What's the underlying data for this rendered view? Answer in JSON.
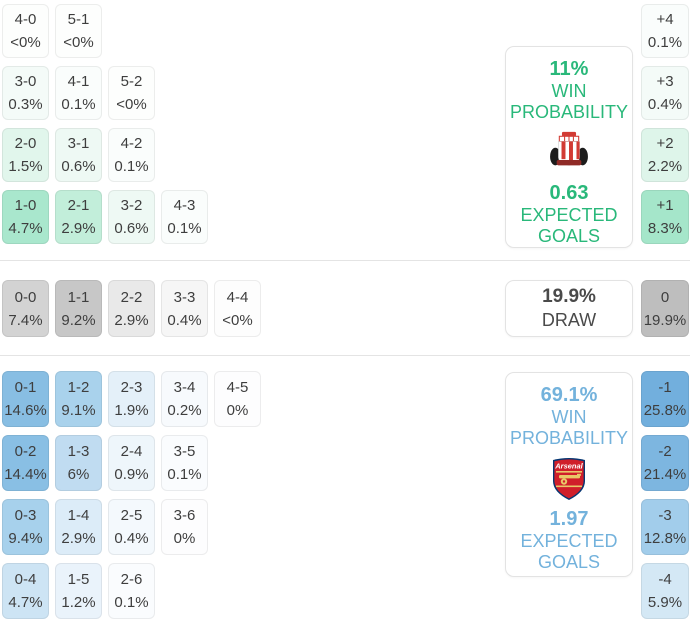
{
  "chart_data": {
    "type": "heatmap",
    "description_labels": {
      "home_crest_icon": "sunderland-crest",
      "away_crest_icon": "arsenal-crest"
    },
    "home_win_score_rows": [
      [
        {
          "score": "4-0",
          "prob": "<0%",
          "bg": "#fdfefd"
        },
        {
          "score": "5-1",
          "prob": "<0%",
          "bg": "#fdfefd"
        }
      ],
      [
        {
          "score": "3-0",
          "prob": "0.3%",
          "bg": "#f4fbf8"
        },
        {
          "score": "4-1",
          "prob": "0.1%",
          "bg": "#fafdfc"
        },
        {
          "score": "5-2",
          "prob": "<0%",
          "bg": "#fdfefd"
        }
      ],
      [
        {
          "score": "2-0",
          "prob": "1.5%",
          "bg": "#e1f6ec"
        },
        {
          "score": "3-1",
          "prob": "0.6%",
          "bg": "#eef9f4"
        },
        {
          "score": "4-2",
          "prob": "0.1%",
          "bg": "#fafdfc"
        }
      ],
      [
        {
          "score": "1-0",
          "prob": "4.7%",
          "bg": "#a9e7cd"
        },
        {
          "score": "2-1",
          "prob": "2.9%",
          "bg": "#c2eeda"
        },
        {
          "score": "3-2",
          "prob": "0.6%",
          "bg": "#eef9f4"
        },
        {
          "score": "4-3",
          "prob": "0.1%",
          "bg": "#fafdfc"
        }
      ]
    ],
    "draw_score_row": [
      {
        "score": "0-0",
        "prob": "7.4%",
        "bg": "#d3d3d3"
      },
      {
        "score": "1-1",
        "prob": "9.2%",
        "bg": "#c7c7c7"
      },
      {
        "score": "2-2",
        "prob": "2.9%",
        "bg": "#e9e9e9"
      },
      {
        "score": "3-3",
        "prob": "0.4%",
        "bg": "#f6f6f6"
      },
      {
        "score": "4-4",
        "prob": "<0%",
        "bg": "#fdfdfd"
      }
    ],
    "away_win_score_rows": [
      [
        {
          "score": "0-1",
          "prob": "14.6%",
          "bg": "#88bee3"
        },
        {
          "score": "1-2",
          "prob": "9.1%",
          "bg": "#a9d2ec"
        },
        {
          "score": "2-3",
          "prob": "1.9%",
          "bg": "#e4f0f9"
        },
        {
          "score": "3-4",
          "prob": "0.2%",
          "bg": "#f7fafd"
        },
        {
          "score": "4-5",
          "prob": "0%",
          "bg": "#fdfdfe"
        }
      ],
      [
        {
          "score": "0-2",
          "prob": "14.4%",
          "bg": "#89bfe4"
        },
        {
          "score": "1-3",
          "prob": "6%",
          "bg": "#c0dcf1"
        },
        {
          "score": "2-4",
          "prob": "0.9%",
          "bg": "#eef6fb"
        },
        {
          "score": "3-5",
          "prob": "0.1%",
          "bg": "#fafcfe"
        }
      ],
      [
        {
          "score": "0-3",
          "prob": "9.4%",
          "bg": "#a7d1ec"
        },
        {
          "score": "1-4",
          "prob": "2.9%",
          "bg": "#dcecf8"
        },
        {
          "score": "2-5",
          "prob": "0.4%",
          "bg": "#f4f9fd"
        },
        {
          "score": "3-6",
          "prob": "0%",
          "bg": "#fdfdfe"
        }
      ],
      [
        {
          "score": "0-4",
          "prob": "4.7%",
          "bg": "#cde4f4"
        },
        {
          "score": "1-5",
          "prob": "1.2%",
          "bg": "#eaf3fb"
        },
        {
          "score": "2-6",
          "prob": "0.1%",
          "bg": "#fafcfe"
        }
      ]
    ],
    "goal_diff_home": [
      {
        "diff": "+4",
        "prob": "0.1%",
        "bg": "#fafdfc"
      },
      {
        "diff": "+3",
        "prob": "0.4%",
        "bg": "#f4fbf8"
      },
      {
        "diff": "+2",
        "prob": "2.2%",
        "bg": "#def5ea"
      },
      {
        "diff": "+1",
        "prob": "8.3%",
        "bg": "#a5e6ca"
      }
    ],
    "goal_diff_draw": [
      {
        "diff": "0",
        "prob": "19.9%",
        "bg": "#bebebe"
      }
    ],
    "goal_diff_away": [
      {
        "diff": "-1",
        "prob": "25.8%",
        "bg": "#72afdd"
      },
      {
        "diff": "-2",
        "prob": "21.4%",
        "bg": "#7db6e0"
      },
      {
        "diff": "-3",
        "prob": "12.8%",
        "bg": "#a2cdeb"
      },
      {
        "diff": "-4",
        "prob": "5.9%",
        "bg": "#d4e8f5"
      }
    ]
  },
  "panels": {
    "home": {
      "win_probability_value": "11%",
      "win_probability_label": "WIN PROBABILITY",
      "expected_goals_value": "0.63",
      "expected_goals_label": "EXPECTED GOALS",
      "crest_icon": "sunderland-crest",
      "accent_color": "#29b87a"
    },
    "draw": {
      "probability_value": "19.9%",
      "label": "DRAW",
      "accent_color": "#4a4a4a"
    },
    "away": {
      "win_probability_value": "69.1%",
      "win_probability_label": "WIN PROBABILITY",
      "expected_goals_value": "1.97",
      "expected_goals_label": "EXPECTED GOALS",
      "crest_icon": "arsenal-crest",
      "accent_color": "#73b2dc"
    }
  }
}
